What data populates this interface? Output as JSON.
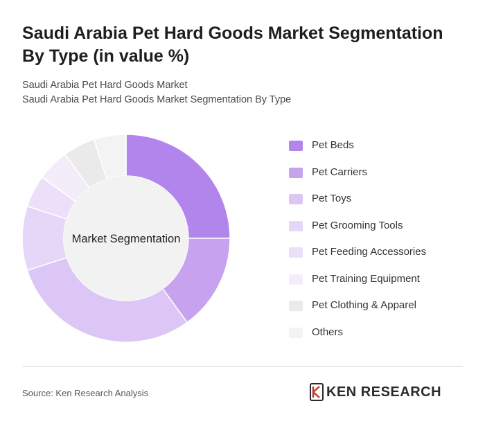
{
  "header": {
    "title": "Saudi Arabia Pet Hard Goods Market Segmentation By Type (in value %)",
    "subtitle_line1": "Saudi Arabia Pet Hard Goods Market",
    "subtitle_line2": "Saudi Arabia Pet Hard Goods Market Segmentation By Type"
  },
  "chart_data": {
    "type": "pie",
    "variant": "donut",
    "center_label": "Market Segmentation",
    "categories": [
      "Pet Beds",
      "Pet Carriers",
      "Pet Toys",
      "Pet Grooming Tools",
      "Pet Feeding Accessories",
      "Pet Training Equipment",
      "Pet Clothing & Apparel",
      "Others"
    ],
    "values": [
      25,
      15,
      30,
      10,
      5,
      5,
      5,
      5
    ],
    "colors": [
      "#b285ec",
      "#c6a2ef",
      "#dcc6f6",
      "#e6d6f8",
      "#ece0f9",
      "#f3edf9",
      "#eaeaea",
      "#f3f3f3"
    ],
    "legend_position": "right"
  },
  "footer": {
    "source": "Source: Ken Research Analysis",
    "logo_text": "KEN RESEARCH"
  }
}
